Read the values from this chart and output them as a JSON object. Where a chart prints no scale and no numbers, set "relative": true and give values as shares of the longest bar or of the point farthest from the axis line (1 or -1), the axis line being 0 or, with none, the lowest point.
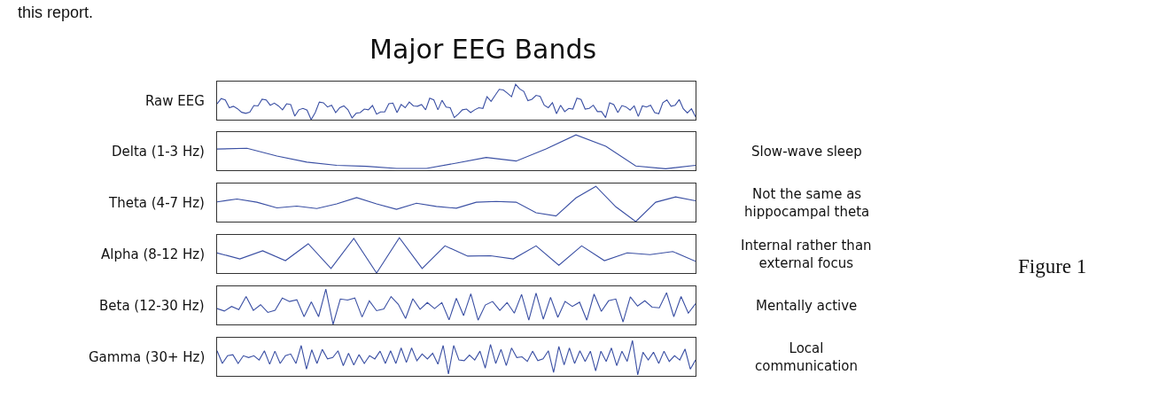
{
  "chart_data": [
    {
      "type": "line",
      "relative": true,
      "title": "Major EEG Bands",
      "ylabel": "Raw EEG",
      "annotations": [
        "this report.",
        "Figure 1"
      ],
      "tick_labels": false,
      "categories": [
        null,
        null,
        null,
        null,
        null,
        null,
        null,
        null,
        null,
        null,
        null,
        null,
        null,
        null,
        null,
        null,
        null,
        null,
        null,
        null,
        null,
        null,
        null,
        null,
        null,
        null,
        null,
        null,
        null,
        null,
        null,
        null,
        null,
        null,
        null,
        null,
        null,
        null,
        null,
        null,
        null,
        null,
        null,
        null,
        null,
        null,
        null,
        null,
        null,
        null,
        null,
        null,
        null,
        null,
        null,
        null,
        null,
        null,
        null,
        null,
        null,
        null,
        null,
        null,
        null,
        null,
        null,
        null,
        null,
        null,
        null,
        null,
        null,
        null,
        null,
        null,
        null,
        null,
        null,
        null,
        null,
        null,
        null,
        null,
        null,
        null,
        null,
        null,
        null,
        null,
        null,
        null,
        null,
        null,
        null,
        null,
        null,
        null,
        null,
        null,
        null,
        null,
        null,
        null,
        null,
        null,
        null,
        null,
        null,
        null,
        null,
        null,
        null,
        null,
        null,
        null,
        null,
        null
      ],
      "series": [
        {
          "color": "#3a4fa3",
          "values": [
            0.45,
            0.6,
            0.56,
            0.34,
            0.38,
            0.31,
            0.21,
            0.18,
            0.21,
            0.4,
            0.39,
            0.58,
            0.56,
            0.41,
            0.47,
            0.39,
            0.28,
            0.45,
            0.43,
            0.1,
            0.28,
            0.32,
            0.27,
            0,
            0.2,
            0.5,
            0.48,
            0.36,
            0.41,
            0.2,
            0.34,
            0.39,
            0.28,
            0.05,
            0.18,
            0.2,
            0.3,
            0.28,
            0.4,
            0.16,
            0.22,
            0.22,
            0.45,
            0.47,
            0.2,
            0.43,
            0.34,
            0.5,
            0.39,
            0.38,
            0.43,
            0.28,
            0.61,
            0.56,
            0.28,
            0.55,
            0.36,
            0.34,
            0.06,
            0.16,
            0.28,
            0.3,
            0.2,
            0.28,
            0.34,
            0.32,
            0.65,
            0.52,
            0.69,
            0.86,
            0.84,
            0.75,
            0.65,
            1,
            0.87,
            0.8,
            0.54,
            0.58,
            0.69,
            0.66,
            0.41,
            0.34,
            0.48,
            0.17,
            0.41,
            0.23,
            0.32,
            0.3,
            0.61,
            0.57,
            0.3,
            0.32,
            0.41,
            0.23,
            0.23,
            0.06,
            0.48,
            0.43,
            0.2,
            0.4,
            0.36,
            0.27,
            0.39,
            0.09,
            0.39,
            0.36,
            0.41,
            0.2,
            0.17,
            0.48,
            0.56,
            0.38,
            0.41,
            0.57,
            0.31,
            0.19,
            0.31,
            0.08
          ]
        }
      ]
    },
    {
      "type": "line",
      "relative": true,
      "ylabel": "Delta (1-3 Hz)",
      "annotations": [
        "Slow-wave sleep"
      ],
      "tick_labels": false,
      "categories": [
        null,
        null,
        null,
        null,
        null,
        null,
        null,
        null,
        null,
        null,
        null,
        null,
        null,
        null,
        null,
        null,
        null
      ],
      "series": [
        {
          "color": "#3a4fa3",
          "values": [
            0.6,
            0.62,
            0.4,
            0.23,
            0.14,
            0.11,
            0.05,
            0.05,
            0.2,
            0.36,
            0.26,
            0.6,
            1,
            0.68,
            0.12,
            0.04,
            0.14
          ]
        }
      ]
    },
    {
      "type": "line",
      "relative": true,
      "ylabel": "Theta (4-7 Hz)",
      "annotations": [
        "Not the same as\nhippocampal theta"
      ],
      "tick_labels": false,
      "categories": [
        null,
        null,
        null,
        null,
        null,
        null,
        null,
        null,
        null,
        null,
        null,
        null,
        null,
        null,
        null,
        null,
        null,
        null,
        null,
        null,
        null,
        null,
        null,
        null,
        null
      ],
      "series": [
        {
          "color": "#3a4fa3",
          "values": [
            0.56,
            0.64,
            0.55,
            0.39,
            0.44,
            0.37,
            0.5,
            0.68,
            0.5,
            0.35,
            0.52,
            0.43,
            0.38,
            0.55,
            0.57,
            0.55,
            0.25,
            0.16,
            0.67,
            1,
            0.42,
            0,
            0.55,
            0.7,
            0.59
          ]
        }
      ]
    },
    {
      "type": "line",
      "relative": true,
      "ylabel": "Alpha (8-12 Hz)",
      "annotations": [
        "Internal rather than\nexternal focus"
      ],
      "tick_labels": false,
      "categories": [
        null,
        null,
        null,
        null,
        null,
        null,
        null,
        null,
        null,
        null,
        null,
        null,
        null,
        null,
        null,
        null,
        null,
        null,
        null,
        null,
        null,
        null
      ],
      "series": [
        {
          "color": "#3a4fa3",
          "values": [
            0.57,
            0.4,
            0.63,
            0.35,
            0.83,
            0.13,
            0.98,
            0,
            1,
            0.13,
            0.77,
            0.48,
            0.49,
            0.4,
            0.77,
            0.22,
            0.77,
            0.35,
            0.57,
            0.52,
            0.61,
            0.33
          ]
        }
      ]
    },
    {
      "type": "line",
      "relative": true,
      "ylabel": "Beta (12-30 Hz)",
      "annotations": [
        "Mentally active"
      ],
      "tick_labels": false,
      "categories": [
        null,
        null,
        null,
        null,
        null,
        null,
        null,
        null,
        null,
        null,
        null,
        null,
        null,
        null,
        null,
        null,
        null,
        null,
        null,
        null,
        null,
        null,
        null,
        null,
        null,
        null,
        null,
        null,
        null,
        null,
        null,
        null,
        null,
        null,
        null,
        null,
        null,
        null,
        null,
        null,
        null,
        null,
        null,
        null,
        null,
        null,
        null,
        null,
        null,
        null,
        null,
        null,
        null,
        null,
        null,
        null,
        null,
        null,
        null,
        null,
        null,
        null,
        null,
        null,
        null,
        null,
        null
      ],
      "series": [
        {
          "color": "#3a4fa3",
          "values": [
            0.45,
            0.38,
            0.51,
            0.42,
            0.79,
            0.4,
            0.56,
            0.34,
            0.4,
            0.75,
            0.65,
            0.7,
            0.22,
            0.64,
            0.22,
            1,
            0,
            0.72,
            0.69,
            0.75,
            0.21,
            0.67,
            0.39,
            0.44,
            0.79,
            0.57,
            0.17,
            0.73,
            0.43,
            0.62,
            0.45,
            0.62,
            0.13,
            0.74,
            0.25,
            0.87,
            0.12,
            0.55,
            0.65,
            0.4,
            0.62,
            0.32,
            0.85,
            0.12,
            0.89,
            0.15,
            0.77,
            0.2,
            0.65,
            0.51,
            0.63,
            0.12,
            0.86,
            0.37,
            0.67,
            0.72,
            0.07,
            0.78,
            0.52,
            0.67,
            0.49,
            0.47,
            0.9,
            0.22,
            0.79,
            0.32,
            0.59
          ]
        }
      ]
    },
    {
      "type": "line",
      "relative": true,
      "ylabel": "Gamma (30+ Hz)",
      "annotations": [
        "Local\ncommunication"
      ],
      "tick_labels": false,
      "categories": [
        null,
        null,
        null,
        null,
        null,
        null,
        null,
        null,
        null,
        null,
        null,
        null,
        null,
        null,
        null,
        null,
        null,
        null,
        null,
        null,
        null,
        null,
        null,
        null,
        null,
        null,
        null,
        null,
        null,
        null,
        null,
        null,
        null,
        null,
        null,
        null,
        null,
        null,
        null,
        null,
        null,
        null,
        null,
        null,
        null,
        null,
        null,
        null,
        null,
        null,
        null,
        null,
        null,
        null,
        null,
        null,
        null,
        null,
        null,
        null,
        null,
        null,
        null,
        null,
        null,
        null,
        null,
        null,
        null,
        null,
        null,
        null,
        null,
        null,
        null,
        null,
        null,
        null,
        null,
        null,
        null,
        null,
        null,
        null,
        null,
        null,
        null,
        null,
        null,
        null,
        null,
        null
      ],
      "series": [
        {
          "color": "#3a4fa3",
          "values": [
            0.71,
            0.35,
            0.57,
            0.6,
            0.35,
            0.57,
            0.52,
            0.57,
            0.45,
            0.71,
            0.33,
            0.7,
            0.35,
            0.57,
            0.62,
            0.35,
            0.86,
            0.19,
            0.74,
            0.35,
            0.75,
            0.48,
            0.52,
            0.71,
            0.29,
            0.64,
            0.31,
            0.6,
            0.35,
            0.57,
            0.48,
            0.7,
            0.35,
            0.71,
            0.35,
            0.79,
            0.38,
            0.79,
            0.43,
            0.62,
            0.48,
            0.64,
            0.33,
            0.86,
            0.05,
            0.86,
            0.45,
            0.43,
            0.59,
            0.45,
            0.7,
            0.22,
            0.89,
            0.35,
            0.75,
            0.29,
            0.79,
            0.52,
            0.54,
            0.41,
            0.7,
            0.43,
            0.48,
            0.71,
            0.1,
            0.83,
            0.31,
            0.79,
            0.35,
            0.71,
            0.41,
            0.7,
            0.14,
            0.7,
            0.41,
            0.79,
            0.29,
            0.7,
            0.41,
            1,
            0.03,
            0.67,
            0.45,
            0.67,
            0.35,
            0.7,
            0.41,
            0.57,
            0.45,
            0.76,
            0.19,
            0.45
          ]
        }
      ]
    }
  ]
}
